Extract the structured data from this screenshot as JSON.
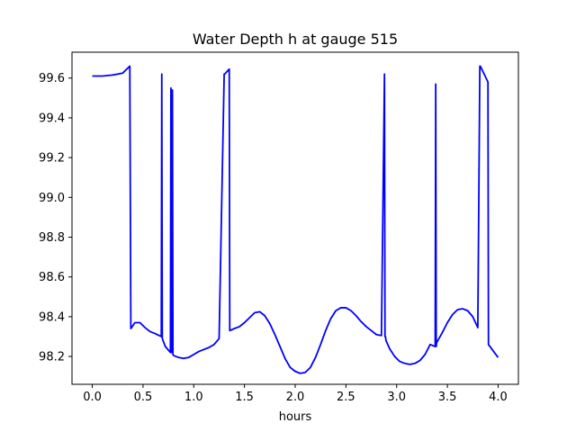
{
  "chart_data": {
    "type": "line",
    "title": "Water Depth h at gauge 515",
    "xlabel": "hours",
    "ylabel": "",
    "xlim": [
      -0.2,
      4.2
    ],
    "ylim": [
      98.06,
      99.73
    ],
    "grid": false,
    "legend": "none",
    "x_ticks": [
      0.0,
      0.5,
      1.0,
      1.5,
      2.0,
      2.5,
      3.0,
      3.5,
      4.0
    ],
    "x_tick_labels": [
      "0.0",
      "0.5",
      "1.0",
      "1.5",
      "2.0",
      "2.5",
      "3.0",
      "3.5",
      "4.0"
    ],
    "y_ticks": [
      98.2,
      98.4,
      98.6,
      98.8,
      99.0,
      99.2,
      99.4,
      99.6
    ],
    "y_tick_labels": [
      "98.2",
      "98.4",
      "98.6",
      "98.8",
      "99.0",
      "99.2",
      "99.4",
      "99.6"
    ],
    "series": [
      {
        "color": "#0000ff",
        "x": [
          0.0,
          0.1,
          0.2,
          0.3,
          0.37,
          0.38,
          0.42,
          0.47,
          0.52,
          0.57,
          0.62,
          0.68,
          0.685,
          0.69,
          0.72,
          0.77,
          0.775,
          0.78,
          0.79,
          0.795,
          0.8,
          0.85,
          0.9,
          0.95,
          1.0,
          1.05,
          1.1,
          1.15,
          1.2,
          1.25,
          1.3,
          1.305,
          1.35,
          1.355,
          1.4,
          1.45,
          1.5,
          1.55,
          1.6,
          1.65,
          1.7,
          1.75,
          1.8,
          1.85,
          1.9,
          1.95,
          2.0,
          2.05,
          2.1,
          2.15,
          2.2,
          2.25,
          2.3,
          2.35,
          2.4,
          2.45,
          2.5,
          2.55,
          2.6,
          2.65,
          2.7,
          2.75,
          2.8,
          2.85,
          2.88,
          2.885,
          2.89,
          2.895,
          2.93,
          2.98,
          3.03,
          3.08,
          3.13,
          3.18,
          3.23,
          3.28,
          3.33,
          3.38,
          3.385,
          3.39,
          3.395,
          3.45,
          3.5,
          3.55,
          3.6,
          3.65,
          3.7,
          3.75,
          3.8,
          3.82,
          3.825,
          3.9,
          3.905,
          4.0
        ],
        "y": [
          99.61,
          99.61,
          99.615,
          99.625,
          99.66,
          98.34,
          98.37,
          98.37,
          98.345,
          98.325,
          98.315,
          98.3,
          99.62,
          98.29,
          98.25,
          98.22,
          99.55,
          98.22,
          99.54,
          98.21,
          98.205,
          98.195,
          98.19,
          98.195,
          98.21,
          98.225,
          98.235,
          98.245,
          98.26,
          98.29,
          99.62,
          99.62,
          99.645,
          98.33,
          98.34,
          98.35,
          98.37,
          98.395,
          98.42,
          98.425,
          98.405,
          98.365,
          98.31,
          98.25,
          98.19,
          98.145,
          98.125,
          98.115,
          98.12,
          98.145,
          98.195,
          98.26,
          98.33,
          98.39,
          98.43,
          98.445,
          98.445,
          98.43,
          98.405,
          98.375,
          98.35,
          98.33,
          98.31,
          98.305,
          99.62,
          98.3,
          98.3,
          98.28,
          98.24,
          98.2,
          98.175,
          98.165,
          98.16,
          98.165,
          98.18,
          98.21,
          98.26,
          98.25,
          99.57,
          98.25,
          98.27,
          98.32,
          98.37,
          98.41,
          98.435,
          98.44,
          98.43,
          98.4,
          98.345,
          99.66,
          99.66,
          99.58,
          98.26,
          98.195
        ]
      }
    ]
  }
}
